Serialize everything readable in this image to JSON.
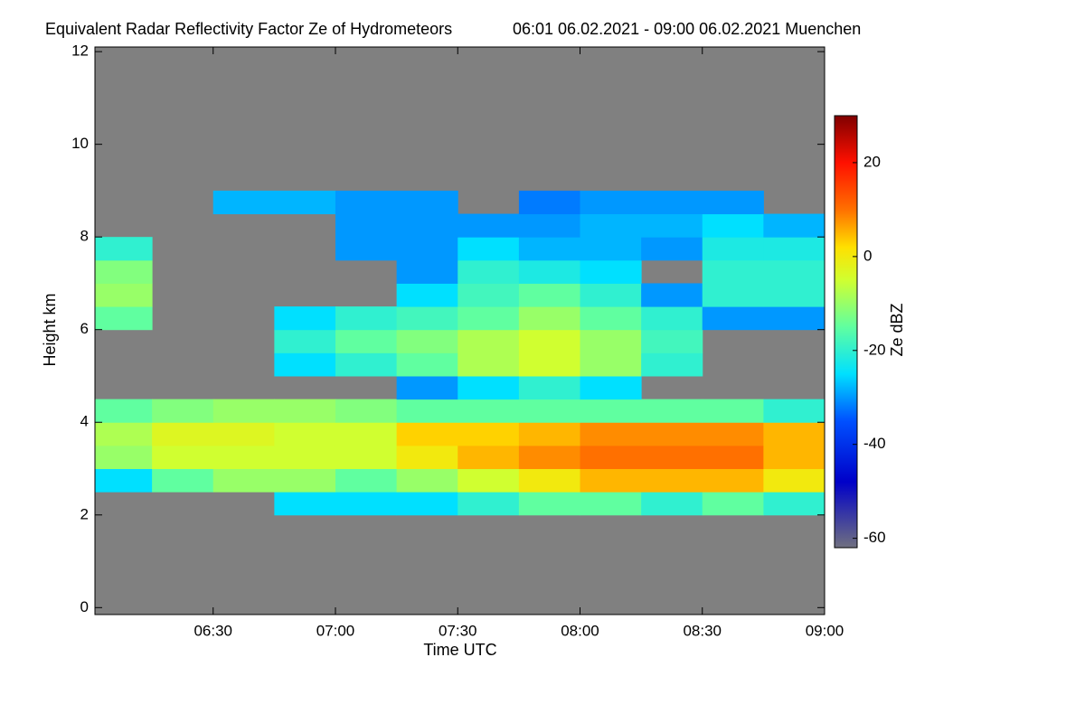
{
  "chart_data": {
    "type": "heatmap",
    "title": "Equivalent Radar Reflectivity Factor Ze of Hydrometeors",
    "subtitle": "06:01 06.02.2021 - 09:00 06.02.2021 Muenchen",
    "x_label": "Time UTC",
    "y_label": "Height km",
    "colorbar_label": "Ze dBZ",
    "background": "#808080",
    "xlim": [
      "06:01",
      "09:00"
    ],
    "xticks": [
      "06:30",
      "07:00",
      "07:30",
      "08:00",
      "08:30",
      "09:00"
    ],
    "ylim": [
      -0.15,
      12.1
    ],
    "yticks": [
      0,
      2,
      4,
      6,
      8,
      10,
      12
    ],
    "clim": [
      -62,
      30
    ],
    "cticks": [
      20,
      0,
      -20,
      -40,
      -60
    ],
    "colormap": {
      "values": [
        -62,
        -48,
        -35,
        -25,
        -15,
        -5,
        2,
        10,
        20,
        30
      ],
      "colors": [
        "#707080",
        "#0000c8",
        "#0050ff",
        "#00e0ff",
        "#60ffa0",
        "#d0ff30",
        "#ffe000",
        "#ff7000",
        "#ff1000",
        "#800000"
      ]
    },
    "xbins": [
      "06:01",
      "06:15",
      "06:30",
      "06:45",
      "07:00",
      "07:15",
      "07:30",
      "07:45",
      "08:00",
      "08:15",
      "08:30",
      "08:45",
      "09:00"
    ],
    "ybins": [
      0,
      0.5,
      1,
      1.5,
      2,
      2.5,
      3,
      3.5,
      4,
      4.5,
      5,
      5.5,
      6,
      6.5,
      7,
      7.5,
      8,
      8.5,
      9,
      9.5,
      10,
      10.5,
      11,
      11.5,
      12
    ],
    "z": [
      [
        null,
        null,
        null,
        null,
        null,
        null,
        null,
        null,
        null,
        null,
        null,
        null
      ],
      [
        null,
        null,
        null,
        null,
        null,
        null,
        null,
        null,
        null,
        null,
        null,
        null
      ],
      [
        null,
        null,
        null,
        null,
        null,
        null,
        null,
        null,
        null,
        null,
        null,
        null
      ],
      [
        null,
        null,
        null,
        null,
        null,
        null,
        null,
        null,
        null,
        null,
        null,
        null
      ],
      [
        null,
        null,
        null,
        -25,
        -25,
        -25,
        -20,
        -15,
        -15,
        -20,
        -15,
        -20
      ],
      [
        -25,
        -15,
        -10,
        -10,
        -15,
        -10,
        -5,
        0,
        5,
        5,
        5,
        0
      ],
      [
        -10,
        -5,
        -5,
        -5,
        -5,
        0,
        5,
        8,
        10,
        10,
        10,
        5
      ],
      [
        -8,
        -3,
        -3,
        -5,
        -5,
        3,
        3,
        5,
        8,
        8,
        8,
        5
      ],
      [
        -15,
        -12,
        -10,
        -10,
        -12,
        -15,
        -15,
        -15,
        -15,
        -15,
        -15,
        -20
      ],
      [
        null,
        null,
        null,
        null,
        null,
        -30,
        -25,
        -20,
        -25,
        null,
        null,
        null
      ],
      [
        null,
        null,
        null,
        -25,
        -20,
        -15,
        -8,
        -5,
        -10,
        -20,
        null,
        null
      ],
      [
        null,
        null,
        null,
        -20,
        -15,
        -12,
        -8,
        -5,
        -10,
        -18,
        null,
        null
      ],
      [
        -15,
        null,
        null,
        -25,
        -20,
        -18,
        -15,
        -10,
        -15,
        -20,
        -30,
        -30
      ],
      [
        -10,
        null,
        null,
        null,
        null,
        -25,
        -18,
        -15,
        -20,
        -30,
        -20,
        -20
      ],
      [
        -12,
        null,
        null,
        null,
        null,
        -30,
        -20,
        -22,
        -25,
        null,
        -20,
        -20
      ],
      [
        -20,
        null,
        null,
        null,
        -30,
        -30,
        -25,
        -28,
        -28,
        -30,
        -22,
        -22
      ],
      [
        null,
        null,
        null,
        null,
        -30,
        -30,
        -30,
        -30,
        -28,
        -28,
        -25,
        -28
      ],
      [
        null,
        null,
        -28,
        -28,
        -30,
        -30,
        null,
        -32,
        -30,
        -30,
        -30,
        null
      ],
      [
        null,
        null,
        null,
        null,
        null,
        null,
        null,
        null,
        null,
        null,
        null,
        null
      ],
      [
        null,
        null,
        null,
        null,
        null,
        null,
        null,
        null,
        null,
        null,
        null,
        null
      ],
      [
        null,
        null,
        null,
        null,
        null,
        null,
        null,
        null,
        null,
        null,
        null,
        null
      ],
      [
        null,
        null,
        null,
        null,
        null,
        null,
        null,
        null,
        null,
        null,
        null,
        null
      ],
      [
        null,
        null,
        null,
        null,
        null,
        null,
        null,
        null,
        null,
        null,
        null,
        null
      ],
      [
        null,
        null,
        null,
        null,
        null,
        null,
        null,
        null,
        null,
        null,
        null,
        null
      ]
    ]
  }
}
